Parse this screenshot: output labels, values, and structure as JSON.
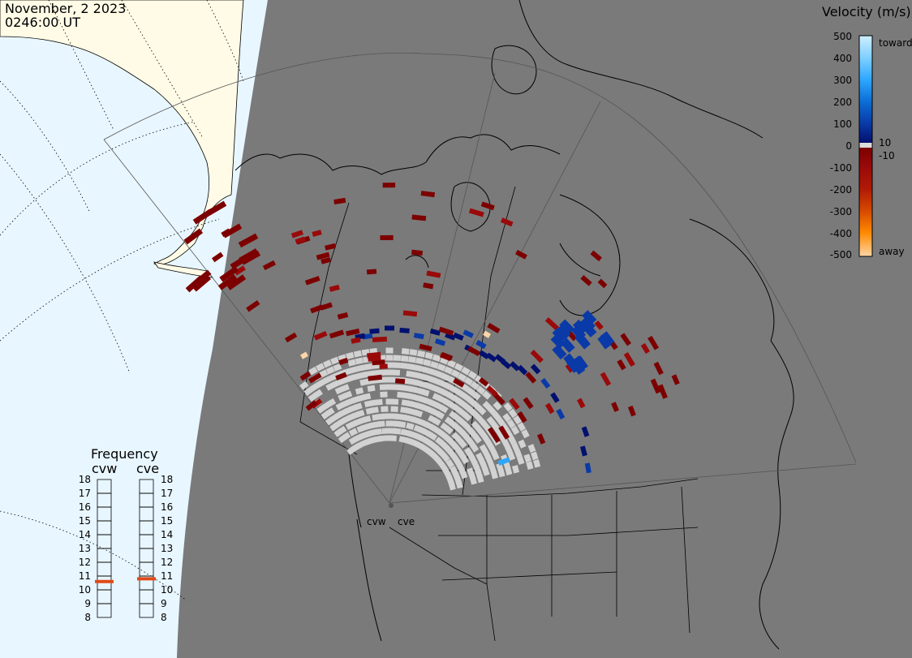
{
  "header": {
    "date": "November, 2 2023",
    "time": "0246:00 UT"
  },
  "colorbar": {
    "title": "Velocity (m/s)",
    "ticks": [
      "500",
      "400",
      "300",
      "200",
      "100",
      "10",
      "0",
      "-10",
      "-100",
      "-200",
      "-300",
      "-400",
      "-500"
    ],
    "toward_label": "toward",
    "away_label": "away",
    "colors": {
      "v500": "#cfeeff",
      "v400": "#7fd0ff",
      "v300": "#2ea7ff",
      "v200": "#0b6fd6",
      "v100": "#0a3aa8",
      "v10": "#02106f",
      "zero": "#dcdcdc",
      "n10": "#7d0000",
      "n100": "#9a0a0a",
      "n200": "#b01a05",
      "n300": "#d64a00",
      "n400": "#ff8a00",
      "n500": "#ffd6a6"
    }
  },
  "frequency": {
    "title": "Frequency",
    "radars": [
      {
        "name": "cvw",
        "value": 10.6
      },
      {
        "name": "cve",
        "value": 10.8
      }
    ],
    "scale_labels": [
      "18",
      "17",
      "16",
      "15",
      "14",
      "13",
      "12",
      "11",
      "10",
      "9",
      "8"
    ]
  },
  "map": {
    "radar_sites": [
      "cvw",
      "cve"
    ],
    "colors": {
      "ocean": "#e8f6ff",
      "land_day": "#fffbe6",
      "night": "#7a7a7a",
      "coast": "#000000",
      "ground_scatter": "#d2d2d2"
    }
  }
}
